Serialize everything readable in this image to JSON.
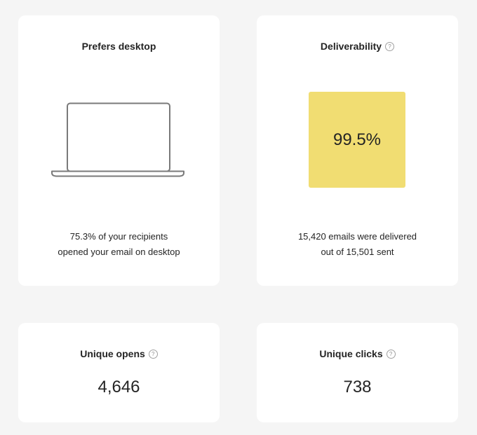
{
  "desktop_card": {
    "title": "Prefers desktop",
    "line1": "75.3% of your recipients",
    "line2": "opened your email on desktop",
    "icon": "laptop-icon"
  },
  "deliverability_card": {
    "title": "Deliverability",
    "value": "99.5%",
    "line1": "15,420 emails were delivered",
    "line2": "out of 15,501 sent",
    "box_color": "#f1dd72",
    "help_icon": "?"
  },
  "opens_card": {
    "title": "Unique opens",
    "value": "4,646",
    "help_icon": "?"
  },
  "clicks_card": {
    "title": "Unique clicks",
    "value": "738",
    "help_icon": "?"
  },
  "colors": {
    "background": "#f5f5f5",
    "card": "#ffffff",
    "text": "#242424"
  }
}
